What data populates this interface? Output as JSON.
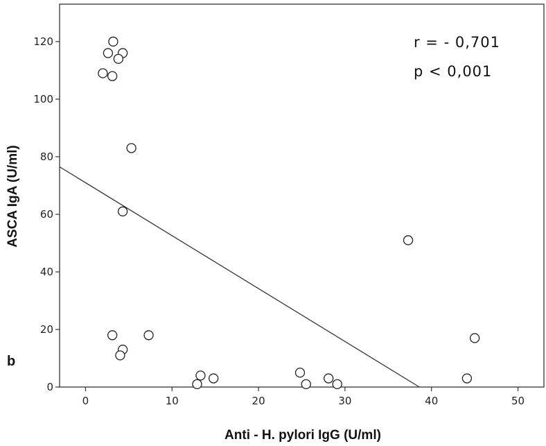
{
  "chart_data": {
    "type": "scatter",
    "xlabel": "Anti - H. pylori IgG (U/ml)",
    "ylabel": "ASCA IgA (U/ml)",
    "xlim": [
      -3,
      53
    ],
    "ylim": [
      0,
      133
    ],
    "x_ticks": [
      0,
      10,
      20,
      30,
      40,
      50
    ],
    "y_ticks": [
      0,
      20,
      40,
      60,
      80,
      100,
      120
    ],
    "grid": false,
    "panel_label": "b",
    "annotations": [
      "r = - 0,701",
      "p < 0,001"
    ],
    "points": [
      {
        "x": 3.2,
        "y": 120
      },
      {
        "x": 2.6,
        "y": 116
      },
      {
        "x": 4.3,
        "y": 116
      },
      {
        "x": 3.8,
        "y": 114
      },
      {
        "x": 2.0,
        "y": 109
      },
      {
        "x": 3.1,
        "y": 108
      },
      {
        "x": 5.3,
        "y": 83
      },
      {
        "x": 4.3,
        "y": 61
      },
      {
        "x": 37.3,
        "y": 51
      },
      {
        "x": 3.1,
        "y": 18
      },
      {
        "x": 7.3,
        "y": 18
      },
      {
        "x": 4.3,
        "y": 13
      },
      {
        "x": 4.0,
        "y": 11
      },
      {
        "x": 45.0,
        "y": 17
      },
      {
        "x": 13.3,
        "y": 4
      },
      {
        "x": 12.9,
        "y": 1
      },
      {
        "x": 14.8,
        "y": 3
      },
      {
        "x": 24.8,
        "y": 5
      },
      {
        "x": 25.5,
        "y": 1
      },
      {
        "x": 28.1,
        "y": 3
      },
      {
        "x": 29.1,
        "y": 1
      },
      {
        "x": 44.1,
        "y": 3
      }
    ],
    "regression_line": {
      "x": [
        -3,
        38.6
      ],
      "y": [
        76.5,
        0
      ]
    }
  }
}
